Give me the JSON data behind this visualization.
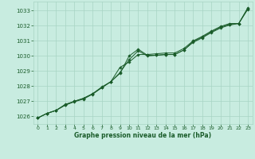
{
  "bg_color": "#c8ece0",
  "grid_color": "#a8d4c4",
  "line_color": "#1a5c2a",
  "marker_color": "#1a5c2a",
  "xlabel": "Graphe pression niveau de la mer (hPa)",
  "xlabel_color": "#1a5c2a",
  "ylabel_ticks": [
    1026,
    1027,
    1028,
    1029,
    1030,
    1031,
    1032,
    1033
  ],
  "xticks": [
    0,
    1,
    2,
    3,
    4,
    5,
    6,
    7,
    8,
    9,
    10,
    11,
    12,
    13,
    14,
    15,
    16,
    17,
    18,
    19,
    20,
    21,
    22,
    23
  ],
  "xlim": [
    -0.5,
    23.5
  ],
  "ylim": [
    1025.5,
    1033.6
  ],
  "series1": {
    "x": [
      0,
      1,
      2,
      3,
      4,
      5,
      6,
      7,
      8,
      9,
      10,
      11,
      12,
      13,
      14,
      15,
      16,
      17,
      18,
      19,
      20,
      21,
      22,
      23
    ],
    "y": [
      1025.9,
      1026.2,
      1026.4,
      1026.8,
      1027.0,
      1027.2,
      1027.5,
      1027.9,
      1028.3,
      1028.85,
      1030.0,
      1030.45,
      1030.05,
      1030.05,
      1030.1,
      1030.1,
      1030.4,
      1030.9,
      1031.2,
      1031.55,
      1031.85,
      1032.05,
      1032.15,
      1033.1
    ]
  },
  "series2": {
    "x": [
      0,
      1,
      2,
      3,
      4,
      5,
      6,
      7,
      8,
      9,
      10,
      11,
      12,
      13,
      14,
      15,
      16,
      17,
      18,
      19,
      20,
      21,
      22,
      23
    ],
    "y": [
      1025.9,
      1026.2,
      1026.4,
      1026.75,
      1027.0,
      1027.2,
      1027.5,
      1027.95,
      1028.3,
      1029.25,
      1029.6,
      1030.1,
      1030.1,
      1030.15,
      1030.2,
      1030.2,
      1030.5,
      1031.0,
      1031.3,
      1031.65,
      1031.95,
      1032.15,
      1032.15,
      1033.2
    ]
  },
  "series3": {
    "x": [
      0,
      1,
      2,
      3,
      4,
      5,
      6,
      7,
      8,
      9,
      10,
      11,
      12,
      13,
      14,
      15,
      16,
      17,
      18,
      19,
      20,
      21,
      22,
      23
    ],
    "y": [
      1025.9,
      1026.2,
      1026.4,
      1026.75,
      1026.97,
      1027.15,
      1027.47,
      1027.9,
      1028.3,
      1028.9,
      1029.75,
      1030.35,
      1030.0,
      1030.05,
      1030.1,
      1030.1,
      1030.4,
      1030.95,
      1031.25,
      1031.6,
      1031.9,
      1032.1,
      1032.15,
      1033.15
    ]
  }
}
